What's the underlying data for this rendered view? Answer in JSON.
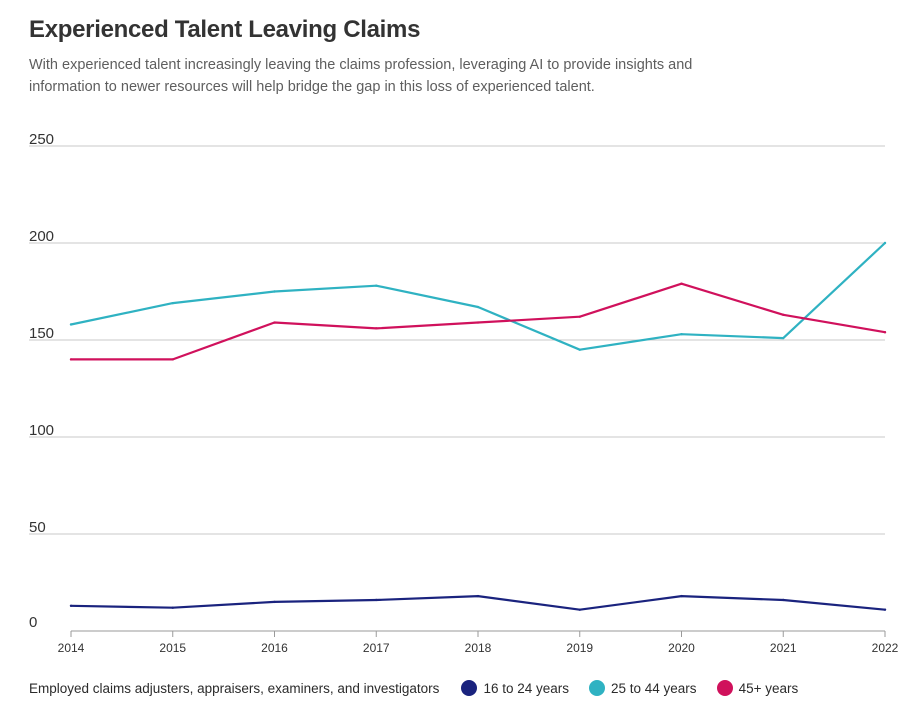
{
  "title": "Experienced Talent Leaving Claims",
  "subtitle": "With experienced talent increasingly leaving the claims profession, leveraging AI to provide insights and information to newer resources will help bridge the gap in this loss of experienced talent.",
  "legend": {
    "prefix": "Employed claims adjusters, appraisers, examiners, and investigators",
    "items": [
      {
        "label": "16 to 24 years",
        "color": "#1a237e"
      },
      {
        "label": "25 to 44 years",
        "color": "#2fb2c2"
      },
      {
        "label": "45+ years",
        "color": "#d0115c"
      }
    ]
  },
  "chart_data": {
    "type": "line",
    "title": "Experienced Talent Leaving Claims",
    "x": [
      "2014",
      "2015",
      "2016",
      "2017",
      "2018",
      "2019",
      "2020",
      "2021",
      "2022"
    ],
    "ylim": [
      0,
      250
    ],
    "yticks": [
      0,
      50,
      100,
      150,
      200,
      250
    ],
    "grid": true,
    "legend_position": "bottom",
    "series": [
      {
        "name": "16 to 24 years",
        "color": "#1a237e",
        "values": [
          13,
          12,
          15,
          16,
          18,
          11,
          18,
          16,
          11
        ]
      },
      {
        "name": "25 to 44 years",
        "color": "#2fb2c2",
        "values": [
          158,
          169,
          175,
          178,
          167,
          145,
          153,
          151,
          200
        ]
      },
      {
        "name": "45+ years",
        "color": "#d0115c",
        "values": [
          140,
          140,
          159,
          156,
          159,
          162,
          179,
          163,
          154
        ]
      }
    ]
  }
}
